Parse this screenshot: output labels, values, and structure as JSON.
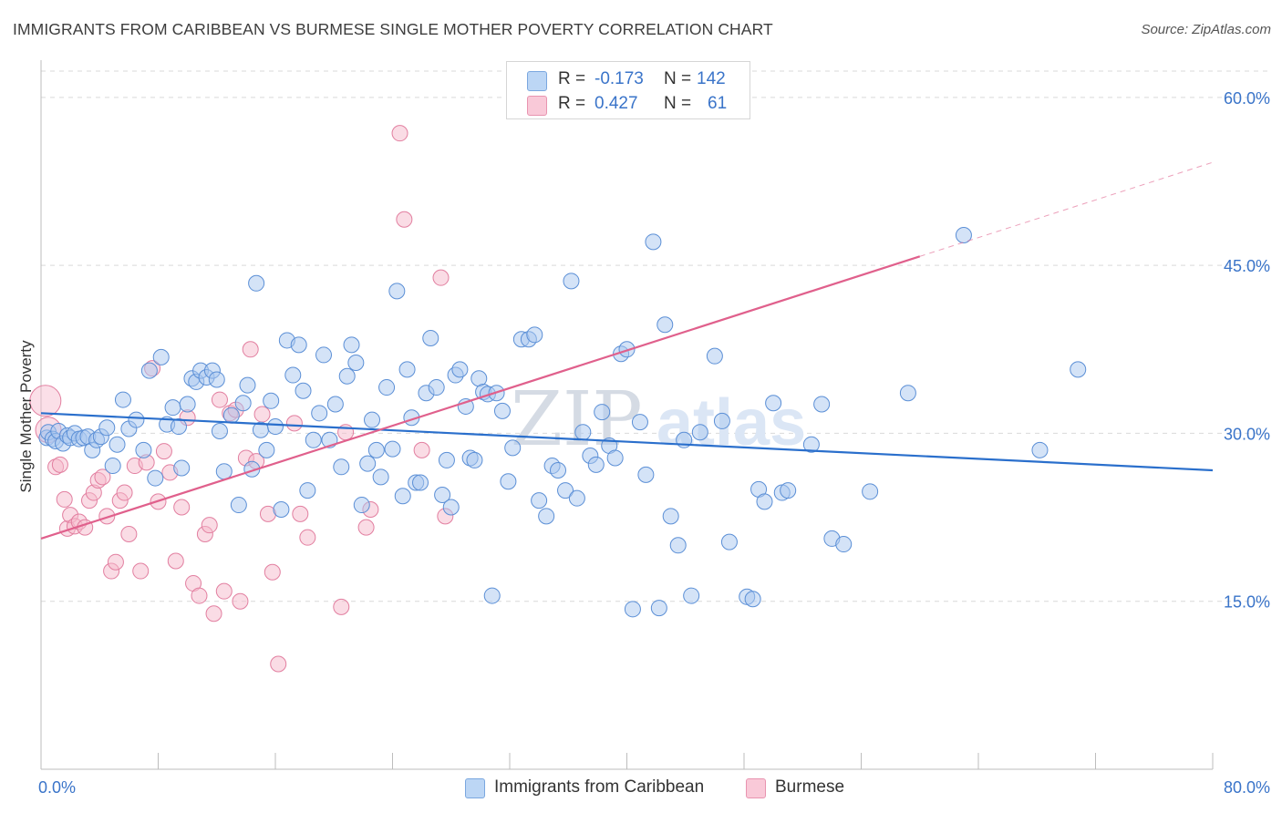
{
  "title": "IMMIGRANTS FROM CARIBBEAN VS BURMESE SINGLE MOTHER POVERTY CORRELATION CHART",
  "source": "Source: ZipAtlas.com",
  "watermark": {
    "zip": "ZIP",
    "atlas": "atlas"
  },
  "colors": {
    "blue_fill": "#a9c8ef",
    "blue_stroke": "#5b8fd6",
    "blue_line": "#2a6fcc",
    "pink_fill": "#f6b9cc",
    "pink_stroke": "#e27fa0",
    "pink_line": "#e0608c",
    "axis_label": "#3a74c9",
    "grid": "#d9d9d9"
  },
  "legend": {
    "rows": [
      {
        "r_label": "R =",
        "r_value": "-0.173",
        "n_label": "N =",
        "n_value": "142"
      },
      {
        "r_label": "R =",
        "r_value": "0.427",
        "n_label": "N =",
        "n_value": "61"
      }
    ]
  },
  "bottom_legend": [
    {
      "label": "Immigrants from Caribbean"
    },
    {
      "label": "Burmese"
    }
  ],
  "chart_data": {
    "type": "scatter",
    "xlabel": "",
    "ylabel": "Single Mother Poverty",
    "xlim": [
      0,
      80
    ],
    "ylim": [
      0,
      63
    ],
    "x_tick_labels": [
      "0.0%",
      "80.0%"
    ],
    "y_ticks": [
      15,
      30,
      45,
      60
    ],
    "y_tick_labels": [
      "15.0%",
      "30.0%",
      "45.0%",
      "60.0%"
    ],
    "grid": true,
    "series": [
      {
        "name": "Immigrants from Caribbean",
        "trend": {
          "x0": 0,
          "y0": 31.8,
          "x1": 80,
          "y1": 26.7
        },
        "points": [
          [
            0.4,
            29.6
          ],
          [
            0.5,
            30.1
          ],
          [
            0.8,
            29.5
          ],
          [
            1.0,
            29.3
          ],
          [
            1.2,
            30.2
          ],
          [
            1.5,
            29.1
          ],
          [
            1.8,
            29.8
          ],
          [
            2.0,
            29.6
          ],
          [
            2.3,
            30.0
          ],
          [
            2.6,
            29.5
          ],
          [
            2.9,
            29.6
          ],
          [
            3.2,
            29.7
          ],
          [
            3.5,
            28.5
          ],
          [
            3.8,
            29.4
          ],
          [
            4.1,
            29.7
          ],
          [
            4.5,
            30.5
          ],
          [
            4.9,
            27.1
          ],
          [
            5.2,
            29.0
          ],
          [
            5.6,
            33.0
          ],
          [
            6.0,
            30.4
          ],
          [
            6.5,
            31.2
          ],
          [
            7.0,
            28.5
          ],
          [
            7.4,
            35.6
          ],
          [
            7.8,
            26.0
          ],
          [
            8.2,
            36.8
          ],
          [
            8.6,
            30.8
          ],
          [
            9.0,
            32.3
          ],
          [
            9.4,
            30.6
          ],
          [
            9.6,
            26.9
          ],
          [
            10.0,
            32.6
          ],
          [
            10.3,
            34.9
          ],
          [
            10.6,
            34.6
          ],
          [
            10.9,
            35.6
          ],
          [
            11.3,
            35.0
          ],
          [
            11.7,
            35.6
          ],
          [
            12.0,
            34.8
          ],
          [
            12.2,
            30.2
          ],
          [
            12.5,
            26.6
          ],
          [
            13.0,
            31.6
          ],
          [
            13.5,
            23.6
          ],
          [
            13.8,
            32.7
          ],
          [
            14.1,
            34.3
          ],
          [
            14.4,
            26.8
          ],
          [
            14.7,
            43.4
          ],
          [
            15.0,
            30.3
          ],
          [
            15.4,
            28.5
          ],
          [
            15.7,
            32.9
          ],
          [
            16.0,
            30.6
          ],
          [
            16.4,
            23.2
          ],
          [
            16.8,
            38.3
          ],
          [
            17.2,
            35.2
          ],
          [
            17.6,
            37.9
          ],
          [
            17.9,
            33.8
          ],
          [
            18.2,
            24.9
          ],
          [
            18.6,
            29.4
          ],
          [
            19.0,
            31.8
          ],
          [
            19.3,
            37.0
          ],
          [
            19.7,
            29.4
          ],
          [
            20.1,
            32.6
          ],
          [
            20.5,
            27.0
          ],
          [
            20.9,
            35.1
          ],
          [
            21.2,
            37.9
          ],
          [
            21.5,
            36.3
          ],
          [
            21.9,
            23.6
          ],
          [
            22.3,
            27.3
          ],
          [
            22.6,
            31.2
          ],
          [
            22.9,
            28.5
          ],
          [
            23.2,
            26.1
          ],
          [
            23.6,
            34.1
          ],
          [
            24.0,
            28.6
          ],
          [
            24.3,
            42.7
          ],
          [
            24.7,
            24.4
          ],
          [
            25.0,
            35.7
          ],
          [
            25.3,
            31.4
          ],
          [
            25.6,
            25.6
          ],
          [
            25.9,
            25.6
          ],
          [
            26.3,
            33.6
          ],
          [
            26.6,
            38.5
          ],
          [
            27.0,
            34.1
          ],
          [
            27.4,
            24.5
          ],
          [
            27.7,
            27.6
          ],
          [
            28.0,
            23.4
          ],
          [
            28.3,
            35.2
          ],
          [
            28.6,
            35.7
          ],
          [
            29.0,
            32.4
          ],
          [
            29.3,
            27.8
          ],
          [
            29.6,
            27.6
          ],
          [
            29.9,
            34.9
          ],
          [
            30.2,
            33.7
          ],
          [
            30.5,
            33.5
          ],
          [
            30.8,
            15.5
          ],
          [
            31.1,
            33.6
          ],
          [
            31.5,
            32.0
          ],
          [
            31.9,
            25.7
          ],
          [
            32.2,
            28.7
          ],
          [
            32.8,
            38.4
          ],
          [
            33.3,
            38.4
          ],
          [
            33.7,
            38.8
          ],
          [
            34.0,
            24.0
          ],
          [
            34.5,
            22.6
          ],
          [
            34.9,
            27.1
          ],
          [
            35.3,
            26.7
          ],
          [
            35.8,
            24.9
          ],
          [
            36.2,
            43.6
          ],
          [
            36.6,
            24.2
          ],
          [
            37.0,
            30.1
          ],
          [
            37.5,
            28.0
          ],
          [
            37.9,
            27.2
          ],
          [
            38.3,
            31.9
          ],
          [
            38.8,
            28.9
          ],
          [
            39.2,
            27.8
          ],
          [
            39.6,
            37.1
          ],
          [
            40.0,
            37.5
          ],
          [
            40.4,
            14.3
          ],
          [
            40.9,
            31.0
          ],
          [
            41.3,
            26.3
          ],
          [
            41.8,
            47.1
          ],
          [
            42.2,
            14.4
          ],
          [
            42.6,
            39.7
          ],
          [
            43.0,
            22.6
          ],
          [
            43.5,
            20.0
          ],
          [
            43.9,
            29.4
          ],
          [
            44.4,
            15.5
          ],
          [
            45.0,
            30.1
          ],
          [
            46.0,
            36.9
          ],
          [
            46.5,
            31.1
          ],
          [
            47.0,
            20.3
          ],
          [
            48.2,
            15.4
          ],
          [
            48.6,
            15.2
          ],
          [
            49.0,
            25.0
          ],
          [
            49.4,
            23.9
          ],
          [
            50.0,
            32.7
          ],
          [
            50.6,
            24.7
          ],
          [
            51.0,
            24.9
          ],
          [
            52.6,
            29.0
          ],
          [
            53.3,
            32.6
          ],
          [
            54.0,
            20.6
          ],
          [
            54.8,
            20.1
          ],
          [
            56.6,
            24.8
          ],
          [
            59.2,
            33.6
          ],
          [
            63.0,
            47.7
          ],
          [
            68.2,
            28.5
          ],
          [
            70.8,
            35.7
          ]
        ]
      },
      {
        "name": "Burmese",
        "trend": {
          "x0": 0,
          "y0": 20.6,
          "x1": 60,
          "y1": 45.8,
          "dash_to_x": 80,
          "dash_to_y": 54.2
        },
        "points": [
          [
            0.3,
            32.9
          ],
          [
            0.5,
            30.3
          ],
          [
            1.0,
            27.0
          ],
          [
            1.3,
            27.2
          ],
          [
            1.6,
            24.1
          ],
          [
            1.8,
            21.5
          ],
          [
            2.0,
            22.7
          ],
          [
            2.3,
            21.7
          ],
          [
            2.6,
            22.1
          ],
          [
            3.0,
            21.6
          ],
          [
            3.3,
            24.0
          ],
          [
            3.6,
            24.7
          ],
          [
            3.9,
            25.8
          ],
          [
            4.2,
            26.1
          ],
          [
            4.5,
            22.6
          ],
          [
            4.8,
            17.7
          ],
          [
            5.1,
            18.5
          ],
          [
            5.4,
            24.0
          ],
          [
            5.7,
            24.7
          ],
          [
            6.0,
            21.0
          ],
          [
            6.4,
            27.1
          ],
          [
            6.8,
            17.7
          ],
          [
            7.2,
            27.4
          ],
          [
            7.6,
            35.8
          ],
          [
            8.0,
            23.9
          ],
          [
            8.4,
            28.4
          ],
          [
            8.8,
            26.5
          ],
          [
            9.2,
            18.6
          ],
          [
            9.6,
            23.4
          ],
          [
            10.0,
            31.4
          ],
          [
            10.4,
            16.6
          ],
          [
            10.8,
            15.5
          ],
          [
            11.2,
            21.0
          ],
          [
            11.5,
            21.8
          ],
          [
            11.8,
            13.9
          ],
          [
            12.2,
            33.0
          ],
          [
            12.5,
            15.9
          ],
          [
            12.9,
            31.8
          ],
          [
            13.3,
            32.1
          ],
          [
            13.6,
            15.0
          ],
          [
            14.0,
            27.8
          ],
          [
            14.3,
            37.5
          ],
          [
            14.7,
            27.5
          ],
          [
            15.1,
            31.7
          ],
          [
            15.5,
            22.8
          ],
          [
            15.8,
            17.6
          ],
          [
            16.2,
            9.4
          ],
          [
            17.3,
            30.9
          ],
          [
            17.7,
            22.8
          ],
          [
            18.2,
            20.7
          ],
          [
            20.5,
            14.5
          ],
          [
            20.8,
            30.1
          ],
          [
            22.2,
            21.6
          ],
          [
            22.5,
            23.2
          ],
          [
            24.5,
            56.8
          ],
          [
            24.8,
            49.1
          ],
          [
            26.0,
            28.5
          ],
          [
            27.3,
            43.9
          ],
          [
            27.6,
            22.6
          ]
        ]
      }
    ]
  }
}
